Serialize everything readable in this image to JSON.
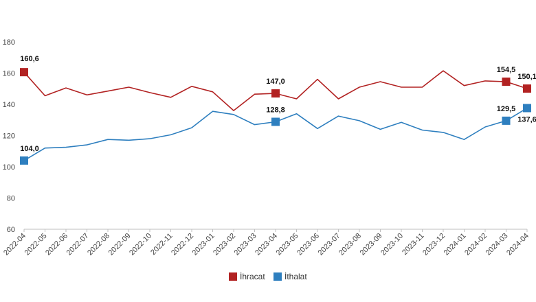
{
  "chart_data": {
    "type": "line",
    "title": "",
    "xlabel": "",
    "ylabel": "",
    "ylim": [
      60,
      180
    ],
    "yticks": [
      60,
      80,
      100,
      120,
      140,
      160,
      180
    ],
    "grid": false,
    "legend_position": "bottom-center",
    "categories": [
      "2022-04",
      "2022-05",
      "2022-06",
      "2022-07",
      "2022-08",
      "2022-09",
      "2022-10",
      "2022-11",
      "2022-12",
      "2023-01",
      "2023-02",
      "2023-03",
      "2023-04",
      "2023-05",
      "2023-06",
      "2023-07",
      "2023-08",
      "2023-09",
      "2023-10",
      "2023-11",
      "2023-12",
      "2024-01",
      "2024-02",
      "2024-03",
      "2024-04"
    ],
    "series": [
      {
        "name": "İhracat",
        "color": "#b22222",
        "values": [
          160.6,
          145.5,
          150.5,
          146.0,
          148.5,
          151.0,
          147.5,
          144.5,
          151.5,
          148.0,
          136.0,
          146.5,
          147.0,
          143.5,
          156.0,
          143.5,
          151.0,
          154.5,
          151.0,
          151.0,
          161.5,
          152.0,
          155.0,
          154.5,
          150.1
        ],
        "labeled_points": [
          {
            "index": 0,
            "text": "160,6"
          },
          {
            "index": 12,
            "text": "147,0"
          },
          {
            "index": 23,
            "text": "154,5"
          },
          {
            "index": 24,
            "text": "150,1"
          }
        ]
      },
      {
        "name": "İthalat",
        "color": "#2e7fbf",
        "values": [
          104.0,
          112.0,
          112.5,
          114.0,
          117.5,
          117.0,
          118.0,
          120.5,
          125.0,
          135.5,
          133.5,
          127.0,
          128.8,
          134.0,
          124.5,
          132.5,
          129.5,
          124.0,
          128.5,
          123.5,
          122.0,
          117.5,
          125.5,
          129.5,
          137.6
        ],
        "labeled_points": [
          {
            "index": 0,
            "text": "104,0"
          },
          {
            "index": 12,
            "text": "128,8"
          },
          {
            "index": 23,
            "text": "129,5"
          },
          {
            "index": 24,
            "text": "137,6"
          }
        ]
      }
    ]
  }
}
